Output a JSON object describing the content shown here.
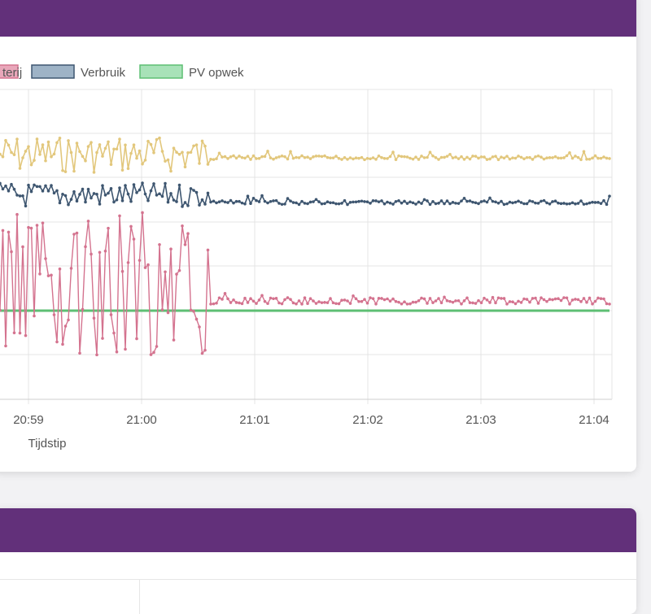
{
  "chart_data": {
    "type": "line",
    "xlabel": "Tijdstip",
    "ylabel": "",
    "x_ticks": [
      "20:59",
      "21:00",
      "21:01",
      "21:02",
      "21:03",
      "21:04"
    ],
    "grid": true,
    "legend_position": "top",
    "series": [
      {
        "name": "terij",
        "color": "#d4738f",
        "fill": "#e9a7ba",
        "partially_visible": true
      },
      {
        "name": "Verbruik",
        "color": "#3e5670",
        "fill": "#9eb3c6"
      },
      {
        "name": "PV opwek",
        "color": "#5dbf73",
        "fill": "#a8e2b8"
      }
    ]
  }
}
